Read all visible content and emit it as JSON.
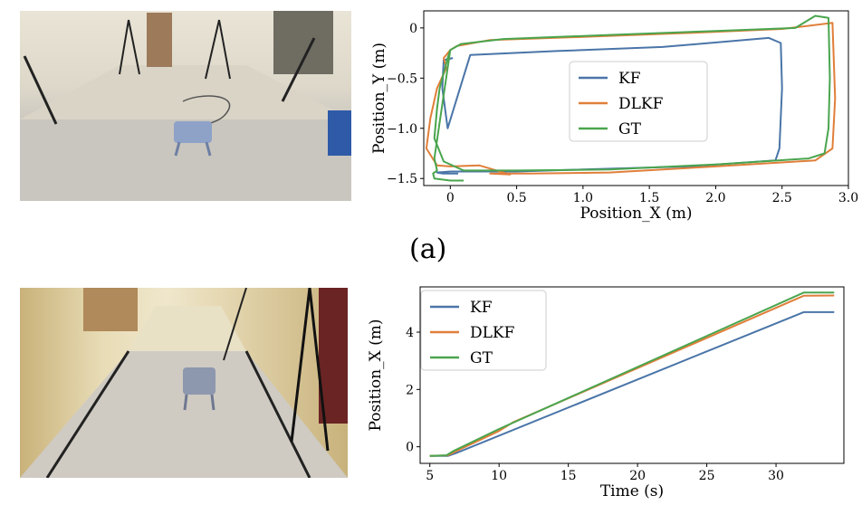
{
  "figure": {
    "caption_a": "(a)"
  },
  "colors": {
    "KF": "#4a75a8",
    "DLKF": "#e07f3a",
    "GT": "#4aa54e"
  },
  "chart_data": [
    {
      "type": "line",
      "xlabel": "Position_X (m)",
      "ylabel": "Position_Y (m)",
      "xlim": [
        -0.2,
        3.0
      ],
      "ylim": [
        -1.57,
        0.17
      ],
      "xticks": [
        0,
        0.5,
        1.0,
        1.5,
        2.0,
        2.5,
        3.0
      ],
      "xtick_labels": [
        "0",
        "0.5",
        "1.0",
        "1.5",
        "2.0",
        "2.5",
        "3.0"
      ],
      "yticks": [
        0,
        -0.5,
        -1.0,
        -1.5
      ],
      "ytick_labels": [
        "0",
        "−0.5",
        "−1.0",
        "−1.5"
      ],
      "legend": "center",
      "series": [
        {
          "name": "KF",
          "x": [
            0.02,
            -0.05,
            -0.06,
            -0.02,
            0.15,
            0.8,
            1.6,
            2.4,
            2.49,
            2.5,
            2.48,
            2.45,
            1.8,
            1.0,
            0.5,
            0.1,
            0.0,
            -0.1,
            -0.06,
            0.06
          ],
          "y": [
            -0.3,
            -0.32,
            -0.6,
            -1.0,
            -0.27,
            -0.23,
            -0.19,
            -0.1,
            -0.15,
            -0.6,
            -1.2,
            -1.32,
            -1.38,
            -1.41,
            -1.43,
            -1.43,
            -1.43,
            -1.44,
            -1.45,
            -1.45
          ]
        },
        {
          "name": "DLKF",
          "x": [
            0.0,
            0.05,
            0.3,
            1.0,
            1.8,
            2.5,
            2.88,
            2.9,
            2.88,
            2.75,
            2.0,
            1.2,
            0.6,
            0.3,
            0.45,
            0.22,
            0.0,
            -0.1,
            -0.18,
            -0.15,
            -0.1,
            -0.03,
            -0.05,
            0.0
          ],
          "y": [
            -0.22,
            -0.18,
            -0.12,
            -0.09,
            -0.05,
            -0.01,
            0.05,
            -0.7,
            -1.2,
            -1.32,
            -1.38,
            -1.44,
            -1.45,
            -1.45,
            -1.46,
            -1.37,
            -1.38,
            -1.37,
            -1.2,
            -0.9,
            -0.6,
            -0.4,
            -0.3,
            -0.22
          ]
        },
        {
          "name": "GT",
          "x": [
            0.0,
            0.08,
            0.4,
            1.2,
            2.0,
            2.6,
            2.75,
            2.85,
            2.86,
            2.85,
            2.82,
            2.7,
            2.0,
            1.2,
            0.5,
            0.1,
            -0.05,
            -0.12,
            -0.1,
            -0.08,
            -0.06,
            -0.04,
            -0.02,
            0.0,
            -0.12,
            -0.1,
            -0.13,
            -0.12,
            0.0,
            0.1
          ],
          "y": [
            -0.22,
            -0.16,
            -0.11,
            -0.07,
            -0.03,
            0.0,
            0.12,
            0.1,
            -0.5,
            -1.0,
            -1.25,
            -1.3,
            -1.36,
            -1.41,
            -1.42,
            -1.42,
            -1.33,
            -1.1,
            -0.8,
            -0.6,
            -0.5,
            -0.4,
            -0.3,
            -0.22,
            -1.3,
            -1.42,
            -1.45,
            -1.5,
            -1.52,
            -1.52
          ]
        }
      ]
    },
    {
      "type": "line",
      "xlabel": "Time (s)",
      "ylabel": "Position_X (m)",
      "xlim": [
        4.3,
        34.9
      ],
      "ylim": [
        -0.58,
        5.58
      ],
      "xticks": [
        5,
        10,
        15,
        20,
        25,
        30
      ],
      "xtick_labels": [
        "5",
        "10",
        "15",
        "20",
        "25",
        "30"
      ],
      "yticks": [
        0,
        2,
        4
      ],
      "ytick_labels": [
        "0",
        "2",
        "4"
      ],
      "legend": "top-left",
      "series": [
        {
          "name": "KF",
          "x": [
            5,
            6.3,
            7,
            32,
            34.2
          ],
          "y": [
            -0.32,
            -0.32,
            -0.2,
            4.7,
            4.7
          ]
        },
        {
          "name": "DLKF",
          "x": [
            5,
            6.3,
            6.8,
            10,
            11,
            32,
            34.2
          ],
          "y": [
            -0.32,
            -0.3,
            -0.18,
            0.55,
            0.85,
            5.27,
            5.28
          ]
        },
        {
          "name": "GT",
          "x": [
            5,
            6.2,
            6.7,
            10,
            32,
            34.2
          ],
          "y": [
            -0.32,
            -0.3,
            -0.15,
            0.62,
            5.38,
            5.38
          ]
        }
      ]
    }
  ]
}
